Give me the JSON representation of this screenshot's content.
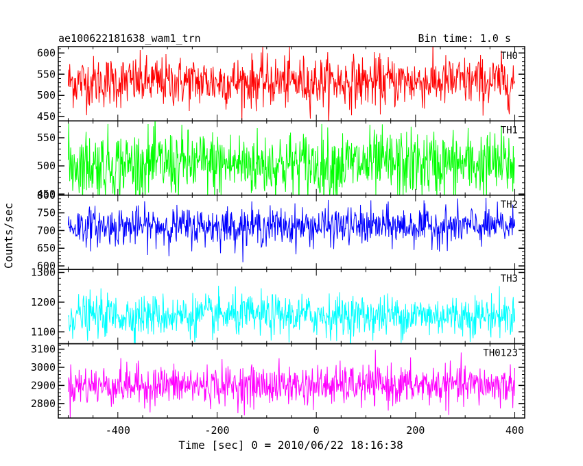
{
  "header": {
    "title": "ae100622181638_wam1_trn",
    "bin_time": "Bin time: 1.0 s"
  },
  "chart_data": {
    "type": "line",
    "xlabel": "Time [sec] 0 = 2010/06/22 18:16:38",
    "ylabel": "Counts/sec",
    "xlim": [
      -520,
      420
    ],
    "x_ticks": [
      -400,
      -200,
      0,
      200,
      400
    ],
    "x_range": [
      -500,
      400
    ],
    "bin_time": 1.0,
    "panels": [
      {
        "name": "TH0",
        "color": "#ff0000",
        "ylim": [
          440,
          615
        ],
        "yticks": [
          450,
          500,
          550,
          600
        ],
        "mean": 532,
        "amplitude": 30
      },
      {
        "name": "TH1",
        "color": "#00ff00",
        "ylim": [
          448,
          580
        ],
        "yticks": [
          450,
          500,
          550
        ],
        "mean": 503,
        "amplitude": 30
      },
      {
        "name": "TH2",
        "color": "#0000ff",
        "ylim": [
          590,
          800
        ],
        "yticks": [
          600,
          650,
          700,
          750,
          800
        ],
        "mean": 712,
        "amplitude": 27
      },
      {
        "name": "TH3",
        "color": "#00ffff",
        "ylim": [
          1060,
          1310
        ],
        "yticks": [
          1100,
          1200,
          1300
        ],
        "mean": 1155,
        "amplitude": 35
      },
      {
        "name": "TH0123",
        "color": "#ff00ff",
        "ylim": [
          2720,
          3130
        ],
        "yticks": [
          2800,
          2900,
          3000,
          3100
        ],
        "mean": 2900,
        "amplitude": 55
      }
    ]
  }
}
